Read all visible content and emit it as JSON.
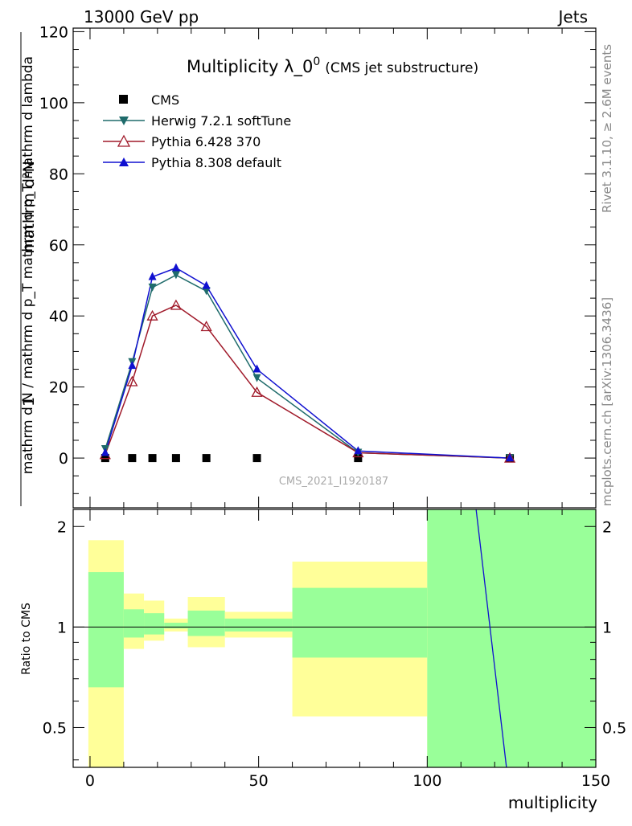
{
  "header": {
    "left": "13000 GeV pp",
    "right": "Jets"
  },
  "side_text": {
    "rivet": "Rivet 3.1.10, ≥ 2.6M events",
    "mcplots": "mcplots.cern.ch [arXiv:1306.3436]"
  },
  "chart_data": [
    {
      "type": "line",
      "title_main": "Multiplicity λ_0",
      "title_sup": "0",
      "title_sub": "(CMS jet substructure)",
      "xlim": [
        -5,
        150
      ],
      "ylim": [
        -14,
        121
      ],
      "yticks": [
        0,
        20,
        40,
        60,
        80,
        100,
        120
      ],
      "ylabel_top": "mathrm d²N",
      "ylabel_num": "1",
      "ylabel_bottom": "mathrm d N / mathrm d p",
      "ylabel_bottom_sub": "T",
      "ylabel_bottom2": "mathrm d p",
      "ylabel_bottom2_sub": "T",
      "ylabel_bottom3": "mathrm d lambda",
      "ylabel_bottom4": "mathrm d N / mathrm d p_T mathrm d p_T mathrm d lambda",
      "watermark": "CMS_2021_I1920187",
      "series": [
        {
          "name": "CMS",
          "color": "#000000",
          "marker": "square",
          "x": [
            4.5,
            12.5,
            18.5,
            25.5,
            34.5,
            49.5,
            79.5,
            124.5
          ],
          "y": [
            0.0,
            0.0,
            0.0,
            0.0,
            0.0,
            0.0,
            0.0,
            0.0
          ]
        },
        {
          "name": "Herwig 7.2.1 softTune",
          "color": "#1f6b6b",
          "marker": "triangle-down",
          "x": [
            4.5,
            12.5,
            18.5,
            25.5,
            34.5,
            49.5,
            79.5,
            124.5
          ],
          "y": [
            2.5,
            27.0,
            48.0,
            51.5,
            47.0,
            22.5,
            1.5,
            0.0
          ]
        },
        {
          "name": "Pythia 6.428 370",
          "color": "#a01a2a",
          "marker": "triangle-open",
          "x": [
            4.5,
            12.5,
            18.5,
            25.5,
            34.5,
            49.5,
            79.5,
            124.5
          ],
          "y": [
            1.0,
            21.5,
            40.0,
            43.0,
            37.0,
            18.5,
            1.5,
            0.0
          ]
        },
        {
          "name": "Pythia 8.308 default",
          "color": "#1010d0",
          "marker": "triangle-up",
          "x": [
            4.5,
            12.5,
            18.5,
            25.5,
            34.5,
            49.5,
            79.5,
            124.5
          ],
          "y": [
            1.5,
            26.0,
            51.0,
            53.5,
            48.5,
            25.0,
            2.0,
            0.0
          ]
        }
      ]
    },
    {
      "type": "area",
      "ylabel": "Ratio to CMS",
      "xlabel": "multiplicity",
      "xlim": [
        -5,
        150
      ],
      "ylim": [
        0.38,
        2.25
      ],
      "yticks_labels": [
        "0.5",
        "1",
        "2"
      ],
      "yticks_values": [
        0.5,
        1,
        2
      ],
      "xticks": [
        0,
        50,
        100,
        150
      ],
      "bands": [
        {
          "x0": -0.5,
          "x1": 10,
          "yellow": [
            0.34,
            1.82
          ],
          "green": [
            0.66,
            1.46
          ]
        },
        {
          "x0": 10,
          "x1": 16,
          "yellow": [
            0.86,
            1.26
          ],
          "green": [
            0.93,
            1.13
          ]
        },
        {
          "x0": 16,
          "x1": 22,
          "yellow": [
            0.91,
            1.2
          ],
          "green": [
            0.95,
            1.1
          ]
        },
        {
          "x0": 22,
          "x1": 29,
          "yellow": [
            0.97,
            1.06
          ],
          "green": [
            0.99,
            1.03
          ]
        },
        {
          "x0": 29,
          "x1": 40,
          "yellow": [
            0.87,
            1.23
          ],
          "green": [
            0.94,
            1.12
          ]
        },
        {
          "x0": 40,
          "x1": 60,
          "yellow": [
            0.93,
            1.11
          ],
          "green": [
            0.97,
            1.06
          ]
        },
        {
          "x0": 60,
          "x1": 100,
          "yellow": [
            0.54,
            1.57
          ],
          "green": [
            0.81,
            1.31
          ]
        },
        {
          "x0": 100,
          "x1": 150,
          "yellow": [
            0.34,
            2.5
          ],
          "green": [
            0.34,
            2.5
          ]
        }
      ],
      "pythia8_line": {
        "x": [
          114.5,
          123.5
        ],
        "y": [
          2.25,
          0.38
        ]
      }
    }
  ]
}
